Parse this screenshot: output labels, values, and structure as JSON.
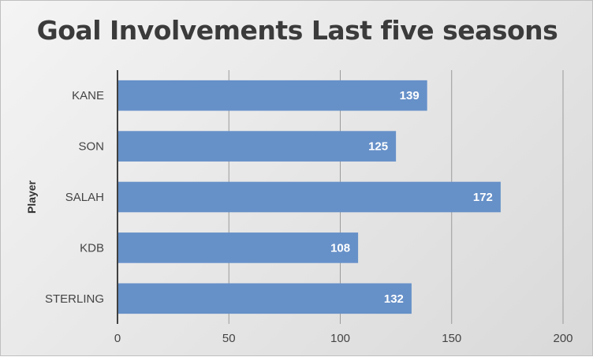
{
  "chart_data": {
    "type": "bar",
    "orientation": "horizontal",
    "title": "Goal Involvements Last five seasons",
    "ylabel": "Player",
    "xlabel": "",
    "categories": [
      "KANE",
      "SON",
      "SALAH",
      "KDB",
      "STERLING"
    ],
    "values": [
      139,
      125,
      172,
      108,
      132
    ],
    "xlim": [
      0,
      200
    ],
    "xticks": [
      0,
      50,
      100,
      150,
      200
    ],
    "grid": "vertical",
    "legend": "none",
    "data_labels": true,
    "bar_color": "#6690c8",
    "axis_color": "#404040",
    "grid_color": "#9a9a9a"
  }
}
